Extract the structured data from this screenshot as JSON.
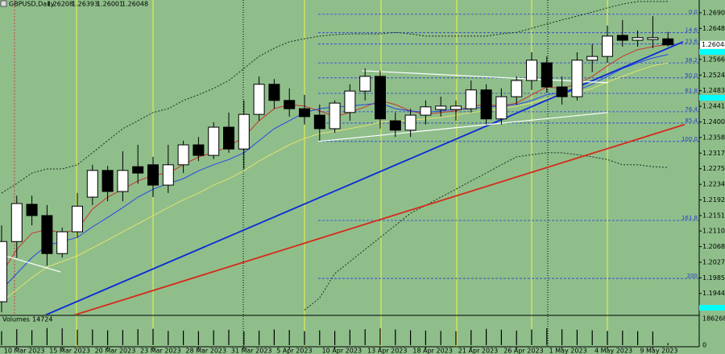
{
  "chart_data": {
    "type": "candlestick",
    "title": "GBPUSD,Daily",
    "categories": [
      null,
      "10 Mar 2023",
      null,
      null,
      "15 Mar 2023",
      null,
      null,
      "20 Mar 2023",
      null,
      null,
      "23 Mar 2023",
      null,
      null,
      "28 Mar 2023",
      null,
      null,
      "31 Mar 2023",
      null,
      null,
      "5 Apr 2023",
      null,
      null,
      "10 Apr 2023",
      null,
      null,
      "13 Apr 2023",
      null,
      null,
      "18 Apr 2023",
      null,
      null,
      "21 Apr 2023",
      null,
      null,
      "26 Apr 2023",
      null,
      null,
      "1 May 2023",
      null,
      null,
      "4 May 2023",
      null,
      null,
      "9 May 2023",
      null
    ],
    "open": [
      1.1922,
      1.2082,
      1.2181,
      1.2151,
      1.205,
      1.2108,
      1.22,
      1.2271,
      1.2215,
      1.2281,
      1.2286,
      1.2232,
      1.2286,
      1.2339,
      1.2311,
      1.2386,
      1.2328,
      1.242,
      1.25,
      1.2457,
      1.2435,
      1.2418,
      1.2382,
      1.2425,
      1.2482,
      1.2521,
      1.2403,
      1.2378,
      1.2418,
      1.2433,
      1.2433,
      1.2435,
      1.2485,
      1.2408,
      1.2467,
      1.251,
      1.2557,
      1.2493,
      1.2467,
      1.2564,
      1.2574,
      1.263,
      1.2617,
      1.2619,
      1.26208
    ],
    "high": [
      1.2125,
      1.2204,
      1.2204,
      1.2179,
      1.2119,
      1.2211,
      1.2286,
      1.2283,
      1.2322,
      1.2339,
      1.2307,
      1.2339,
      1.235,
      1.236,
      1.2399,
      1.2425,
      1.2457,
      1.2521,
      1.2514,
      1.2489,
      1.2472,
      1.2446,
      1.2457,
      1.25,
      1.2542,
      1.2536,
      1.2425,
      1.2435,
      1.2457,
      1.2467,
      1.2457,
      1.251,
      1.25,
      1.2489,
      1.2521,
      1.2585,
      1.2574,
      1.2521,
      1.2585,
      1.2607,
      1.2656,
      1.2671,
      1.2643,
      1.2681,
      1.26393
    ],
    "low": [
      1.1894,
      1.2039,
      1.2125,
      1.2018,
      1.2039,
      1.2093,
      1.2179,
      1.2189,
      1.2189,
      1.2236,
      1.22,
      1.2211,
      1.2264,
      1.2296,
      1.2301,
      1.2318,
      1.2275,
      1.2403,
      1.2435,
      1.2414,
      1.2393,
      1.235,
      1.2371,
      1.2403,
      1.2457,
      1.2382,
      1.236,
      1.236,
      1.2393,
      1.2414,
      1.2403,
      1.2425,
      1.2393,
      1.2393,
      1.2446,
      1.2485,
      1.2478,
      1.2446,
      1.2457,
      1.2532,
      1.2557,
      1.26,
      1.26,
      1.2596,
      1.26001
    ],
    "close": [
      1.2082,
      1.2183,
      1.2151,
      1.205,
      1.2108,
      1.2176,
      1.2271,
      1.2215,
      1.2271,
      1.2264,
      1.2232,
      1.2286,
      1.2339,
      1.2311,
      1.2386,
      1.2328,
      1.242,
      1.25,
      1.2457,
      1.2435,
      1.2414,
      1.2382,
      1.245,
      1.2482,
      1.2521,
      1.2408,
      1.2378,
      1.2418,
      1.244,
      1.2442,
      1.2442,
      1.2485,
      1.2408,
      1.2467,
      1.251,
      1.2564,
      1.2493,
      1.2467,
      1.2564,
      1.2574,
      1.2628,
      1.2617,
      1.2624,
      1.2624,
      1.26048
    ],
    "up_color": "#ffffff",
    "down_color": "#000000",
    "ylim": [
      1.189,
      1.2724
    ],
    "yticks": [
      {
        "value": 1.269,
        "label": "1.26900"
      },
      1.26485,
      {
        "value": 1.2566,
        "label": "1.25660"
      },
      1.25245,
      {
        "value": 1.2483,
        "label": "1.24830"
      },
      1.24415,
      {
        "value": 1.24,
        "label": "1.24000"
      },
      1.23585,
      {
        "value": 1.2317,
        "label": "1.23170"
      },
      1.22755,
      {
        "value": 1.2234,
        "label": "1.22340"
      },
      1.21925,
      {
        "value": 1.2151,
        "label": "1.21510"
      },
      {
        "value": 1.211,
        "label": "1.21100"
      },
      1.20685,
      {
        "value": 1.2027,
        "label": "1.20270"
      },
      1.19855,
      {
        "value": 1.1944,
        "label": "1.19440"
      }
    ],
    "indicators": [
      {
        "color": "#c8352a",
        "style": "solid",
        "values": [
          1.1997,
          1.2061,
          1.2104,
          1.2114,
          1.2104,
          1.2114,
          1.2168,
          1.22,
          1.2221,
          1.2243,
          1.2258,
          1.2264,
          1.2286,
          1.2307,
          1.2318,
          1.2335,
          1.236,
          1.2403,
          1.2435,
          1.2446,
          1.2442,
          1.2429,
          1.2414,
          1.2425,
          1.244,
          1.2457,
          1.2446,
          1.2429,
          1.242,
          1.2425,
          1.2429,
          1.2442,
          1.2446,
          1.2442,
          1.245,
          1.2472,
          1.2493,
          1.2489,
          1.25,
          1.2521,
          1.2549,
          1.2574,
          1.2592,
          1.26,
          1.2606
        ]
      },
      {
        "color": "#2448e8",
        "style": "solid",
        "values": [
          1.1954,
          1.1997,
          1.2039,
          1.2072,
          1.2082,
          1.2093,
          1.2121,
          1.2146,
          1.2172,
          1.22,
          1.2221,
          1.2236,
          1.2249,
          1.227,
          1.2286,
          1.23,
          1.2318,
          1.235,
          1.2382,
          1.2403,
          1.2425,
          1.2435,
          1.244,
          1.2442,
          1.2446,
          1.245,
          1.2435,
          1.2429,
          1.2425,
          1.2429,
          1.2433,
          1.2435,
          1.244,
          1.2442,
          1.2446,
          1.2457,
          1.2472,
          1.2478,
          1.2484,
          1.25,
          1.2521,
          1.2542,
          1.2557,
          1.257,
          1.2579
        ]
      },
      {
        "color": "#e2e26a",
        "style": "solid",
        "values": [
          1.1922,
          1.1954,
          1.1986,
          1.2014,
          1.2029,
          1.2044,
          1.2065,
          1.2086,
          1.2108,
          1.2129,
          1.2151,
          1.2172,
          1.2193,
          1.2211,
          1.2232,
          1.2249,
          1.227,
          1.2296,
          1.2318,
          1.2339,
          1.2356,
          1.2369,
          1.2375,
          1.2382,
          1.239,
          1.2399,
          1.2403,
          1.2405,
          1.2408,
          1.2412,
          1.2418,
          1.2425,
          1.2429,
          1.2435,
          1.2442,
          1.245,
          1.2463,
          1.2472,
          1.2478,
          1.2489,
          1.2506,
          1.2521,
          1.2536,
          1.2549,
          1.2557
        ]
      },
      {
        "color": "#1e2e1e",
        "style": "dotted",
        "values": [
          1.2211,
          1.2236,
          1.2264,
          1.2275,
          1.2275,
          1.2286,
          1.2318,
          1.235,
          1.2382,
          1.2403,
          1.2425,
          1.2435,
          1.2457,
          1.2472,
          1.2489,
          1.251,
          1.2542,
          1.2574,
          1.2596,
          1.2613,
          1.2621,
          1.2628,
          1.2632,
          1.2634,
          1.2634,
          1.2634,
          1.2638,
          1.2634,
          1.2628,
          1.2628,
          1.2628,
          1.2628,
          1.2628,
          1.2634,
          1.2638,
          1.2649,
          1.266,
          1.2671,
          1.2681,
          1.2692,
          1.2703,
          1.2713,
          1.272,
          1.272,
          1.272
        ]
      },
      {
        "color": "#1e2e1e",
        "style": "dotted",
        "values": [
          null,
          null,
          null,
          null,
          null,
          null,
          null,
          null,
          null,
          null,
          null,
          null,
          null,
          null,
          null,
          null,
          null,
          null,
          null,
          null,
          1.19,
          1.1932,
          1.1997,
          1.2029,
          1.2061,
          1.2093,
          1.2125,
          1.2157,
          1.2178,
          1.22,
          1.2221,
          1.2243,
          1.2264,
          1.2286,
          1.2307,
          1.2313,
          1.2318,
          1.2318,
          1.2313,
          1.2307,
          1.23,
          1.2286,
          1.2286,
          1.2281,
          1.2279
        ]
      }
    ],
    "trendlines": [
      {
        "color": "#0a28d8",
        "from": [
          2.8,
          1.1885
        ],
        "to": [
          45,
          1.2613
        ]
      },
      {
        "color": "#d62a1a",
        "from": [
          4.68,
          1.1885
        ],
        "to": [
          45.1,
          1.2393
        ]
      },
      {
        "color": "#ffffff",
        "from": [
          -0.1,
          1.2048
        ],
        "to": [
          3.9,
          1.2001
        ]
      },
      {
        "color": "#ffffff",
        "from": [
          23.8,
          1.2536
        ],
        "to": [
          40.05,
          1.2504
        ]
      },
      {
        "color": "#ffffff",
        "from": [
          20.9,
          1.2348
        ],
        "to": [
          40.05,
          1.2425
        ]
      }
    ],
    "fib_levels": [
      {
        "label": "0.0",
        "price": 1.2686
      },
      {
        "label": "14.6",
        "price": 1.2637
      },
      {
        "label": "23.6",
        "price": 1.2607
      },
      {
        "label": "38.2",
        "price": 1.2557
      },
      {
        "label": "50.0",
        "price": 1.2517
      },
      {
        "label": "61.8",
        "price": 1.2476
      },
      {
        "label": "76.4",
        "price": 1.2427
      },
      {
        "label": "85.4",
        "price": 1.2397
      },
      {
        "label": "100.0",
        "price": 1.2348
      },
      {
        "label": "161.8",
        "price": 1.2138
      },
      {
        "label": "200",
        "price": 1.1984
      }
    ],
    "fib_color": "#2a3ed0",
    "volume_label": "Volumes",
    "volumes": [
      98000,
      112000,
      105000,
      120000,
      118000,
      108000,
      110000,
      104000,
      106000,
      112000,
      115000,
      100000,
      102000,
      98000,
      104000,
      108000,
      96000,
      102000,
      110000,
      106000,
      98000,
      104000,
      100000,
      108000,
      112000,
      118000,
      110000,
      104000,
      102000,
      100000,
      98000,
      106000,
      114000,
      108000,
      102000,
      110000,
      118000,
      112000,
      108000,
      104000,
      100000,
      102000,
      98000,
      96000,
      14724
    ],
    "vlim": [
      0,
      186268
    ],
    "vticks": [
      186268,
      0
    ]
  }
}
